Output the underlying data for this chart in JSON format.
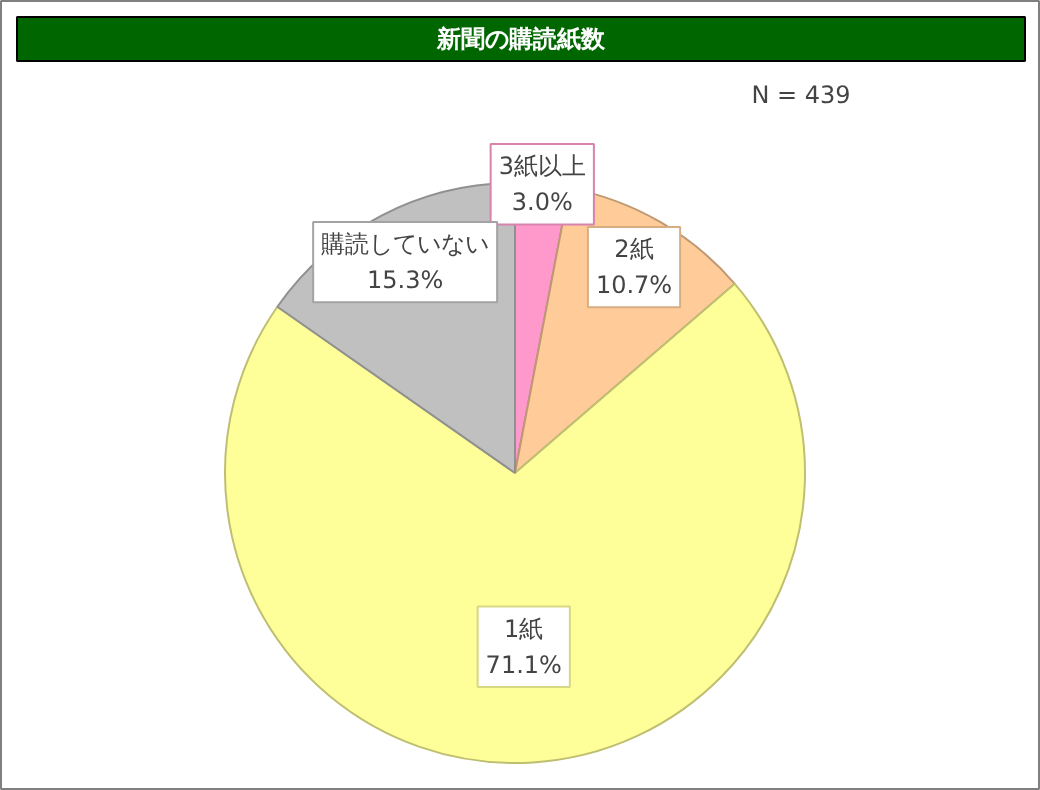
{
  "chart_data": {
    "type": "pie",
    "title": "新聞の購読紙数",
    "categories": [
      "3紙以上",
      "2紙",
      "1紙",
      "購読していない"
    ],
    "values": [
      3.0,
      10.7,
      71.1,
      15.3
    ],
    "value_labels": [
      "3.0%",
      "10.7%",
      "71.1%",
      "15.3%"
    ],
    "colors": [
      "#ff99cc",
      "#ffcc99",
      "#ffff99",
      "#c0c0c0"
    ],
    "annotations": [
      "N = 439"
    ]
  }
}
